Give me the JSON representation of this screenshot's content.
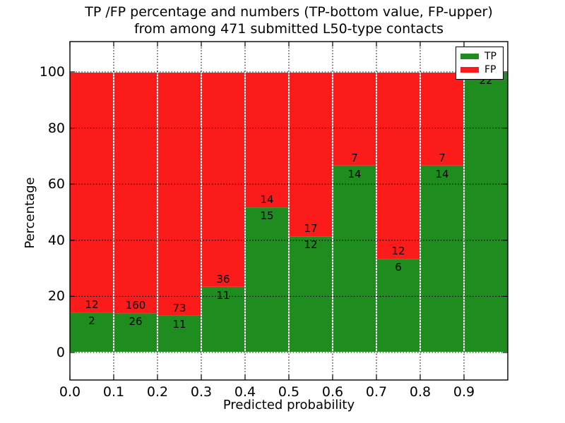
{
  "chart_data": {
    "type": "bar",
    "stacked": true,
    "title": "TP /FP percentage and numbers (TP-bottom value, FP-upper)",
    "subtitle": "from among 471 submitted L50-type contacts",
    "xlabel": "Predicted probability",
    "ylabel": "Percentage",
    "xlim": [
      0.0,
      1.0
    ],
    "ylim": [
      0,
      100
    ],
    "grid": true,
    "legend_position": "upper right",
    "bin_edges": [
      0.0,
      0.1,
      0.2,
      0.3,
      0.4,
      0.5,
      0.6,
      0.7,
      0.8,
      0.9,
      1.0
    ],
    "categories": [
      "0.0-0.1",
      "0.1-0.2",
      "0.2-0.3",
      "0.3-0.4",
      "0.4-0.5",
      "0.5-0.6",
      "0.6-0.7",
      "0.7-0.8",
      "0.8-0.9",
      "0.9-1.0"
    ],
    "xtick_labels": [
      "0.0",
      "0.1",
      "0.2",
      "0.3",
      "0.4",
      "0.5",
      "0.6",
      "0.7",
      "0.8",
      "0.9"
    ],
    "yticks": [
      0,
      20,
      40,
      60,
      80,
      100
    ],
    "ytick_labels": [
      "0",
      "20",
      "40",
      "60",
      "80",
      "100"
    ],
    "series": [
      {
        "name": "TP",
        "color": "#1f8c1f",
        "values": [
          2,
          26,
          11,
          11,
          15,
          12,
          14,
          6,
          14,
          22
        ]
      },
      {
        "name": "FP",
        "color": "#fb1b1b",
        "values": [
          12,
          160,
          73,
          36,
          14,
          17,
          7,
          12,
          7,
          0
        ]
      }
    ],
    "tp_percent": [
      14.3,
      14.0,
      13.1,
      23.4,
      51.7,
      41.4,
      66.7,
      33.3,
      66.7,
      100.0
    ],
    "colors": {
      "tp": "#1f8c1f",
      "fp": "#fb1b1b",
      "grid": "#000000",
      "spine": "#000000",
      "background": "#ffffff"
    }
  }
}
